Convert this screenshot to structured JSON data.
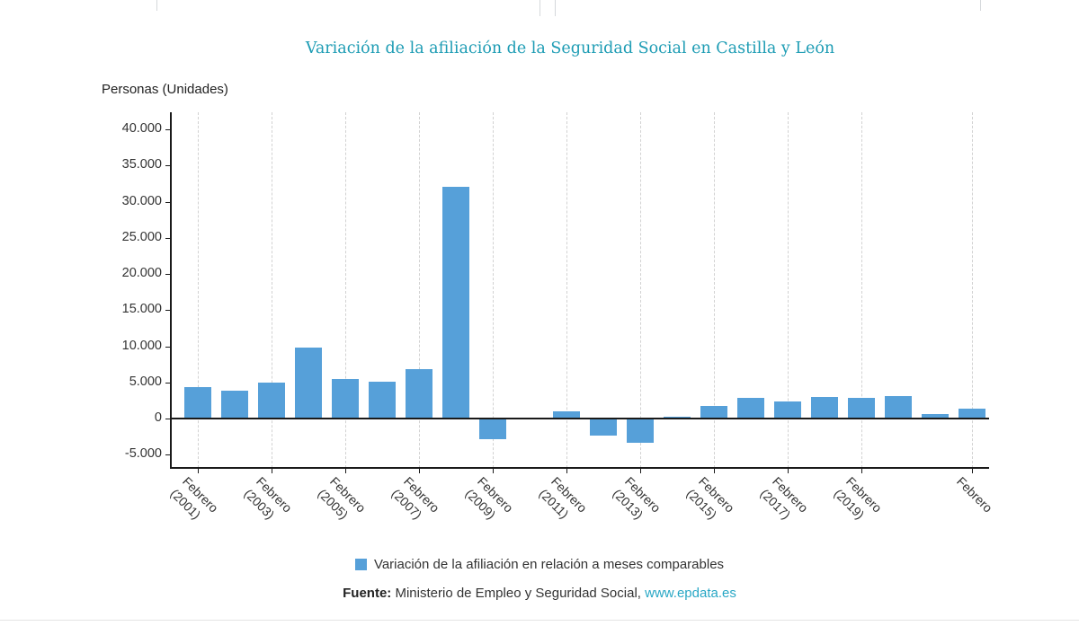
{
  "chart": {
    "title": "Variación de la afiliación de la Seguridad Social en Castilla y León",
    "units_label": "Personas (Unidades)",
    "legend_label": "Variación de la afiliación en relación a meses comparables"
  },
  "source": {
    "prefix_label": "Fuente:",
    "text": " Ministerio de Empleo y Seguridad Social, ",
    "link_label": "www.epdata.es"
  },
  "chart_data": {
    "type": "bar",
    "title": "Variación de la afiliación de la Seguridad Social en Castilla y León",
    "xlabel": "",
    "ylabel": "Personas (Unidades)",
    "legend": [
      "Variación de la afiliación en relación a meses comparables"
    ],
    "legend_position": "bottom-center",
    "grid": {
      "vertical_dashed": true,
      "horizontal": false
    },
    "bar_color": "#56a0d9",
    "x": [
      2001,
      2002,
      2003,
      2004,
      2005,
      2006,
      2007,
      2008,
      2009,
      2010,
      2011,
      2012,
      2013,
      2014,
      2015,
      2016,
      2017,
      2018,
      2019,
      2020,
      2021,
      2022
    ],
    "series": [
      {
        "name": "Variación de la afiliación en relación a meses comparables",
        "values": [
          4400,
          3900,
          5000,
          9800,
          5500,
          5100,
          6800,
          32000,
          -2700,
          0,
          1000,
          -2200,
          -3200,
          300,
          1700,
          2900,
          2400,
          3000,
          2800,
          3100,
          600,
          1400
        ]
      }
    ],
    "ylim": [
      -6500,
      42500
    ],
    "y_tick_step": 5000,
    "y_ticks": [
      {
        "value": 40000,
        "label": "40.000"
      },
      {
        "value": 35000,
        "label": "35.000"
      },
      {
        "value": 30000,
        "label": "30.000"
      },
      {
        "value": 25000,
        "label": "25.000"
      },
      {
        "value": 20000,
        "label": "20.000"
      },
      {
        "value": 15000,
        "label": "15.000"
      },
      {
        "value": 10000,
        "label": "10.000"
      },
      {
        "value": 5000,
        "label": "5.000"
      },
      {
        "value": 0,
        "label": "0"
      },
      {
        "value": -5000,
        "label": "-5.000"
      }
    ],
    "x_ticks": [
      {
        "index": 0,
        "line1": "Febrero",
        "line2": "(2001)"
      },
      {
        "index": 2,
        "line1": "Febrero",
        "line2": "(2003)"
      },
      {
        "index": 4,
        "line1": "Febrero",
        "line2": "(2005)"
      },
      {
        "index": 6,
        "line1": "Febrero",
        "line2": "(2007)"
      },
      {
        "index": 8,
        "line1": "Febrero",
        "line2": "(2009)"
      },
      {
        "index": 10,
        "line1": "Febrero",
        "line2": "(2011)"
      },
      {
        "index": 12,
        "line1": "Febrero",
        "line2": "(2013)"
      },
      {
        "index": 14,
        "line1": "Febrero",
        "line2": "(2015)"
      },
      {
        "index": 16,
        "line1": "Febrero",
        "line2": "(2017)"
      },
      {
        "index": 18,
        "line1": "Febrero",
        "line2": "(2019)"
      },
      {
        "index": 21,
        "line1": "Febrero",
        "line2": ""
      }
    ]
  }
}
